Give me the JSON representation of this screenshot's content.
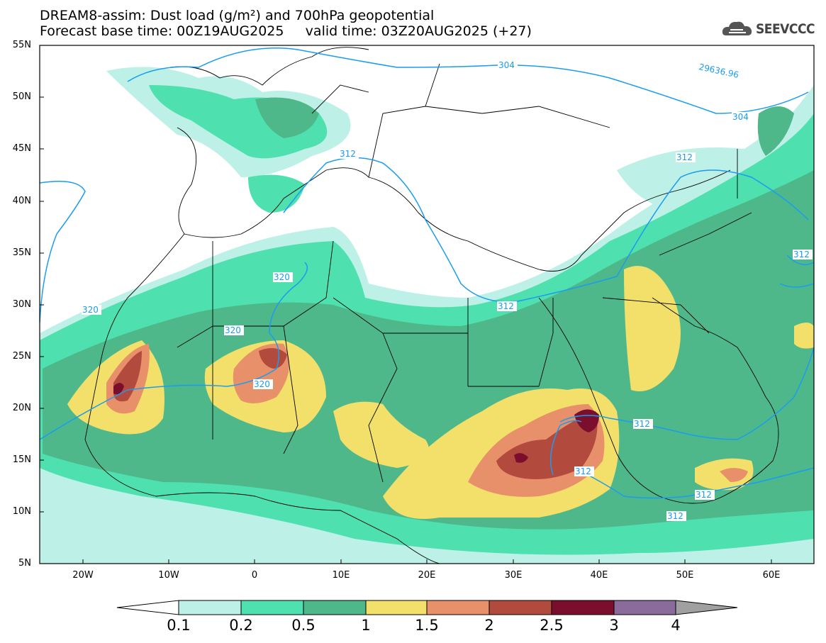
{
  "title_line1": "DREAM8-assim: Dust load (g/m²) and 700hPa geopotential",
  "title_line2": "Forecast base time: 00Z19AUG2025     valid time: 03Z20AUG2025 (+27)",
  "logo_text": "SEEVCCC",
  "lat_labels": [
    "55N",
    "50N",
    "45N",
    "40N",
    "35N",
    "30N",
    "25N",
    "20N",
    "15N",
    "10N",
    "5N"
  ],
  "lon_labels": [
    "20W",
    "10W",
    "0",
    "10E",
    "20E",
    "30E",
    "40E",
    "50E",
    "60E"
  ],
  "contour_labels": [
    "304",
    "304",
    "29636.96",
    "312",
    "312",
    "312",
    "312",
    "312",
    "312",
    "312",
    "320",
    "320",
    "320",
    "320",
    "312"
  ],
  "colorbar": {
    "labels": [
      "0.1",
      "0.2",
      "0.5",
      "1",
      "1.5",
      "2",
      "2.5",
      "3",
      "4"
    ],
    "colors": [
      "#bdf0e6",
      "#4fe0b0",
      "#4fb88a",
      "#f2e06a",
      "#e8906a",
      "#b24a3e",
      "#7a0e2c",
      "#8b6a9c",
      "#a0a0a0"
    ]
  },
  "colors": {
    "contour": "#1a9cf0",
    "border": "#000000"
  }
}
